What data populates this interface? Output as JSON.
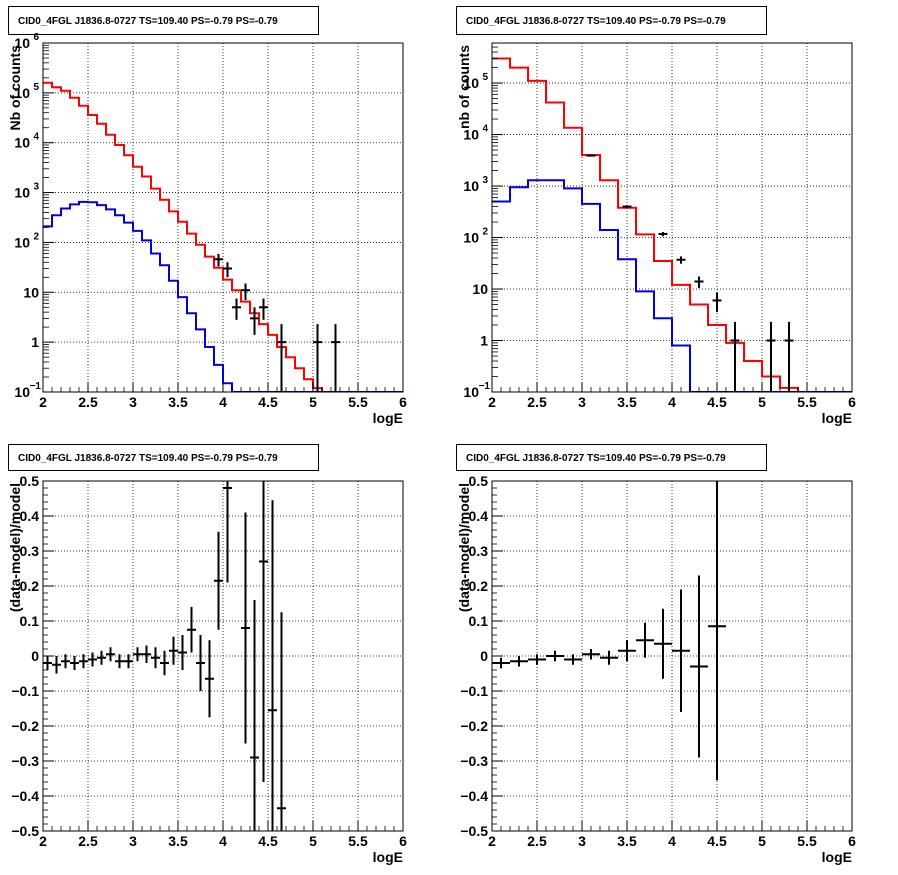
{
  "colors": {
    "data": "#000000",
    "total_model": "#ff0000",
    "component_model": "#0000dd",
    "grid": "#000000"
  },
  "chart_data": [
    {
      "id": "p1",
      "type": "line",
      "title": "CID0_4FGL J1836.8-0727 TS=109.40 PS=-0.79 PS=-0.79",
      "xlabel": "logE",
      "ylabel": "Nb of counts",
      "xlim": [
        2,
        6
      ],
      "ylim": [
        0.1,
        1000000
      ],
      "yscale": "log",
      "grid": true,
      "xticks": [
        {
          "v": 2,
          "t": "2"
        },
        {
          "v": 2.5,
          "t": "2.5"
        },
        {
          "v": 3,
          "t": "3"
        },
        {
          "v": 3.5,
          "t": "3.5"
        },
        {
          "v": 4,
          "t": "4"
        },
        {
          "v": 4.5,
          "t": "4.5"
        },
        {
          "v": 5,
          "t": "5"
        },
        {
          "v": 5.5,
          "t": "5.5"
        },
        {
          "v": 6,
          "t": "6"
        }
      ],
      "yticks": [
        {
          "v": 0.1,
          "t": "10",
          "sup": "−1"
        },
        {
          "v": 1,
          "t": "1"
        },
        {
          "v": 10,
          "t": "10"
        },
        {
          "v": 100,
          "t": "10",
          "sup": "2"
        },
        {
          "v": 1000,
          "t": "10",
          "sup": "3"
        },
        {
          "v": 10000,
          "t": "10",
          "sup": "4"
        },
        {
          "v": 100000,
          "t": "10",
          "sup": "5"
        },
        {
          "v": 1000000,
          "t": "10",
          "sup": "6"
        }
      ],
      "bin_edges": [
        2,
        2.1,
        2.2,
        2.3,
        2.4,
        2.5,
        2.6,
        2.7,
        2.8,
        2.9,
        3,
        3.1,
        3.2,
        3.3,
        3.4,
        3.5,
        3.6,
        3.7,
        3.8,
        3.9,
        4,
        4.1,
        4.2,
        4.3,
        4.4,
        4.5,
        4.6,
        4.7,
        4.8,
        4.9,
        5,
        5.1,
        5.2,
        5.3,
        5.4,
        5.5,
        5.6,
        5.7,
        5.8,
        5.9,
        6
      ],
      "series": [
        {
          "role": "total_model",
          "style": "step",
          "values": [
            160000,
            130000,
            110000,
            80000,
            55000,
            36000,
            24000,
            14500,
            9000,
            5600,
            3300,
            2100,
            1200,
            720,
            420,
            260,
            150,
            90,
            52,
            31,
            18,
            11,
            6.5,
            3.8,
            2.3,
            1.4,
            0.8,
            0.5,
            0.3,
            0.18,
            0.12,
            0.1,
            0.1,
            0.1,
            0.1,
            0.1,
            0.1,
            0.1,
            0.1,
            0.1
          ]
        },
        {
          "role": "component_model",
          "style": "step",
          "values": [
            210,
            350,
            480,
            580,
            650,
            640,
            560,
            460,
            350,
            250,
            170,
            110,
            60,
            35,
            17,
            8,
            3.8,
            1.8,
            0.8,
            0.35,
            0.15,
            0.1,
            0.1,
            0.1,
            0.1,
            0.1,
            0.1,
            0.1,
            0.1,
            0.1,
            0.1,
            0.1,
            0.1,
            0.1,
            0.1,
            0.1,
            0.1,
            0.1,
            0.1,
            0.1
          ]
        },
        {
          "role": "data",
          "style": "errorbar",
          "points": [
            {
              "x": 3.95,
              "y": 46,
              "lo": 33,
              "hi": 59
            },
            {
              "x": 4.05,
              "y": 30,
              "lo": 20,
              "hi": 40
            },
            {
              "x": 4.15,
              "y": 5,
              "lo": 2.8,
              "hi": 7.5
            },
            {
              "x": 4.25,
              "y": 11,
              "lo": 7,
              "hi": 15
            },
            {
              "x": 4.35,
              "y": 3,
              "lo": 1.4,
              "hi": 5
            },
            {
              "x": 4.45,
              "y": 5,
              "lo": 2.8,
              "hi": 7.5
            },
            {
              "x": 4.65,
              "y": 1,
              "lo": 0.1,
              "hi": 2.3
            },
            {
              "x": 5.05,
              "y": 1,
              "lo": 0.1,
              "hi": 2.3
            },
            {
              "x": 5.25,
              "y": 1,
              "lo": 0.1,
              "hi": 2.3
            }
          ]
        }
      ]
    },
    {
      "id": "p2",
      "type": "line",
      "title": "CID0_4FGL J1836.8-0727 TS=109.40 PS=-0.79 PS=-0.79",
      "xlabel": "logE",
      "ylabel": "nb of counts",
      "xlim": [
        2,
        6
      ],
      "ylim": [
        0.1,
        600000
      ],
      "yscale": "log",
      "grid": true,
      "xticks": [
        {
          "v": 2,
          "t": "2"
        },
        {
          "v": 2.5,
          "t": "2.5"
        },
        {
          "v": 3,
          "t": "3"
        },
        {
          "v": 3.5,
          "t": "3.5"
        },
        {
          "v": 4,
          "t": "4"
        },
        {
          "v": 4.5,
          "t": "4.5"
        },
        {
          "v": 5,
          "t": "5"
        },
        {
          "v": 5.5,
          "t": "5.5"
        },
        {
          "v": 6,
          "t": "6"
        }
      ],
      "yticks": [
        {
          "v": 0.1,
          "t": "10",
          "sup": "−1"
        },
        {
          "v": 1,
          "t": "1"
        },
        {
          "v": 10,
          "t": "10"
        },
        {
          "v": 100,
          "t": "10",
          "sup": "2"
        },
        {
          "v": 1000,
          "t": "10",
          "sup": "3"
        },
        {
          "v": 10000,
          "t": "10",
          "sup": "4"
        },
        {
          "v": 100000,
          "t": "10",
          "sup": "5"
        }
      ],
      "bin_edges": [
        2,
        2.2,
        2.4,
        2.6,
        2.8,
        3,
        3.2,
        3.4,
        3.6,
        3.8,
        4,
        4.2,
        4.4,
        4.6,
        4.8,
        5,
        5.2,
        5.4,
        5.6,
        5.8,
        6
      ],
      "series": [
        {
          "role": "total_model",
          "style": "step",
          "values": [
            300000,
            200000,
            110000,
            42000,
            13500,
            4000,
            1300,
            380,
            115,
            35,
            12,
            5,
            2,
            0.9,
            0.4,
            0.2,
            0.12,
            0.1,
            0.1,
            0.1
          ]
        },
        {
          "role": "component_model",
          "style": "step",
          "values": [
            500,
            950,
            1300,
            1300,
            900,
            450,
            140,
            38,
            9,
            2.7,
            0.8,
            0.1,
            0.1,
            0.1,
            0.1,
            0.1,
            0.1,
            0.1,
            0.1,
            0.1
          ]
        },
        {
          "role": "data",
          "style": "errorbar",
          "points": [
            {
              "x": 3.1,
              "y": 3900,
              "lo": 3780,
              "hi": 4020
            },
            {
              "x": 3.5,
              "y": 400,
              "lo": 380,
              "hi": 420
            },
            {
              "x": 3.9,
              "y": 117,
              "lo": 106,
              "hi": 128
            },
            {
              "x": 4.1,
              "y": 37,
              "lo": 31,
              "hi": 43
            },
            {
              "x": 4.3,
              "y": 14,
              "lo": 10.5,
              "hi": 17.5
            },
            {
              "x": 4.5,
              "y": 6,
              "lo": 3.6,
              "hi": 8.5
            },
            {
              "x": 4.7,
              "y": 1,
              "lo": 0.1,
              "hi": 2.3
            },
            {
              "x": 5.1,
              "y": 1,
              "lo": 0.1,
              "hi": 2.3
            },
            {
              "x": 5.3,
              "y": 1,
              "lo": 0.1,
              "hi": 2.3
            }
          ]
        }
      ]
    },
    {
      "id": "p3",
      "type": "scatter",
      "title": "CID0_4FGL J1836.8-0727 TS=109.40 PS=-0.79 PS=-0.79",
      "xlabel": "logE",
      "ylabel": "(data-model)/model",
      "xlim": [
        2,
        6
      ],
      "ylim": [
        -0.5,
        0.5
      ],
      "yscale": "linear",
      "grid": true,
      "xticks": [
        {
          "v": 2,
          "t": "2"
        },
        {
          "v": 2.5,
          "t": "2.5"
        },
        {
          "v": 3,
          "t": "3"
        },
        {
          "v": 3.5,
          "t": "3.5"
        },
        {
          "v": 4,
          "t": "4"
        },
        {
          "v": 4.5,
          "t": "4.5"
        },
        {
          "v": 5,
          "t": "5"
        },
        {
          "v": 5.5,
          "t": "5.5"
        },
        {
          "v": 6,
          "t": "6"
        }
      ],
      "yticks": [
        {
          "v": -0.5,
          "t": "−0.5"
        },
        {
          "v": -0.4,
          "t": "−0.4"
        },
        {
          "v": -0.3,
          "t": "−0.3"
        },
        {
          "v": -0.2,
          "t": "−0.2"
        },
        {
          "v": -0.1,
          "t": "−0.1"
        },
        {
          "v": 0,
          "t": "0"
        },
        {
          "v": 0.1,
          "t": "0.1"
        },
        {
          "v": 0.2,
          "t": "0.2"
        },
        {
          "v": 0.3,
          "t": "0.3"
        },
        {
          "v": 0.4,
          "t": "0.4"
        },
        {
          "v": 0.5,
          "t": "0.5"
        }
      ],
      "series": [
        {
          "role": "data",
          "style": "errorbar",
          "xerr": 0.05,
          "points": [
            {
              "x": 2.05,
              "y": -0.02,
              "err": 0.02
            },
            {
              "x": 2.15,
              "y": -0.025,
              "err": 0.025
            },
            {
              "x": 2.25,
              "y": -0.015,
              "err": 0.02
            },
            {
              "x": 2.35,
              "y": -0.02,
              "err": 0.02
            },
            {
              "x": 2.45,
              "y": -0.015,
              "err": 0.02
            },
            {
              "x": 2.55,
              "y": -0.01,
              "err": 0.02
            },
            {
              "x": 2.65,
              "y": -0.005,
              "err": 0.02
            },
            {
              "x": 2.75,
              "y": 0.005,
              "err": 0.02
            },
            {
              "x": 2.85,
              "y": -0.015,
              "err": 0.02
            },
            {
              "x": 2.95,
              "y": -0.015,
              "err": 0.02
            },
            {
              "x": 3.05,
              "y": 0.005,
              "err": 0.02
            },
            {
              "x": 3.15,
              "y": 0.005,
              "err": 0.025
            },
            {
              "x": 3.25,
              "y": -0.005,
              "err": 0.03
            },
            {
              "x": 3.35,
              "y": -0.02,
              "err": 0.035
            },
            {
              "x": 3.45,
              "y": 0.015,
              "err": 0.04
            },
            {
              "x": 3.55,
              "y": 0.01,
              "err": 0.05
            },
            {
              "x": 3.65,
              "y": 0.075,
              "err": 0.065
            },
            {
              "x": 3.75,
              "y": -0.02,
              "err": 0.08
            },
            {
              "x": 3.85,
              "y": -0.065,
              "err": 0.11
            },
            {
              "x": 3.95,
              "y": 0.215,
              "err": 0.14
            },
            {
              "x": 4.05,
              "y": 0.48,
              "err": 0.27
            },
            {
              "x": 4.25,
              "y": 0.08,
              "err": 0.33
            },
            {
              "x": 4.35,
              "y": -0.29,
              "err": 0.45
            },
            {
              "x": 4.45,
              "y": 0.27,
              "err": 0.63
            },
            {
              "x": 4.55,
              "y": -0.155,
              "err": 0.6
            },
            {
              "x": 4.65,
              "y": -0.435,
              "err": 0.56
            }
          ]
        }
      ]
    },
    {
      "id": "p4",
      "type": "scatter",
      "title": "CID0_4FGL J1836.8-0727 TS=109.40 PS=-0.79 PS=-0.79",
      "xlabel": "logE",
      "ylabel": "(data-model)/model",
      "xlim": [
        2,
        6
      ],
      "ylim": [
        -0.5,
        0.5
      ],
      "yscale": "linear",
      "grid": true,
      "xticks": [
        {
          "v": 2,
          "t": "2"
        },
        {
          "v": 2.5,
          "t": "2.5"
        },
        {
          "v": 3,
          "t": "3"
        },
        {
          "v": 3.5,
          "t": "3.5"
        },
        {
          "v": 4,
          "t": "4"
        },
        {
          "v": 4.5,
          "t": "4.5"
        },
        {
          "v": 5,
          "t": "5"
        },
        {
          "v": 5.5,
          "t": "5.5"
        },
        {
          "v": 6,
          "t": "6"
        }
      ],
      "yticks": [
        {
          "v": -0.5,
          "t": "−0.5"
        },
        {
          "v": -0.4,
          "t": "−0.4"
        },
        {
          "v": -0.3,
          "t": "−0.3"
        },
        {
          "v": -0.2,
          "t": "−0.2"
        },
        {
          "v": -0.1,
          "t": "−0.1"
        },
        {
          "v": 0,
          "t": "0"
        },
        {
          "v": 0.1,
          "t": "0.1"
        },
        {
          "v": 0.2,
          "t": "0.2"
        },
        {
          "v": 0.3,
          "t": "0.3"
        },
        {
          "v": 0.4,
          "t": "0.4"
        },
        {
          "v": 0.5,
          "t": "0.5"
        }
      ],
      "series": [
        {
          "role": "data",
          "style": "errorbar",
          "xerr": 0.1,
          "points": [
            {
              "x": 2.1,
              "y": -0.02,
              "err": 0.015
            },
            {
              "x": 2.3,
              "y": -0.015,
              "err": 0.015
            },
            {
              "x": 2.5,
              "y": -0.01,
              "err": 0.015
            },
            {
              "x": 2.7,
              "y": 0.0,
              "err": 0.015
            },
            {
              "x": 2.9,
              "y": -0.01,
              "err": 0.015
            },
            {
              "x": 3.1,
              "y": 0.005,
              "err": 0.015
            },
            {
              "x": 3.3,
              "y": -0.005,
              "err": 0.02
            },
            {
              "x": 3.5,
              "y": 0.015,
              "err": 0.03
            },
            {
              "x": 3.7,
              "y": 0.045,
              "err": 0.05
            },
            {
              "x": 3.9,
              "y": 0.035,
              "err": 0.1
            },
            {
              "x": 4.1,
              "y": 0.015,
              "err": 0.175
            },
            {
              "x": 4.3,
              "y": -0.03,
              "err": 0.26
            },
            {
              "x": 4.5,
              "y": 0.085,
              "err": 0.44
            }
          ]
        }
      ]
    }
  ]
}
